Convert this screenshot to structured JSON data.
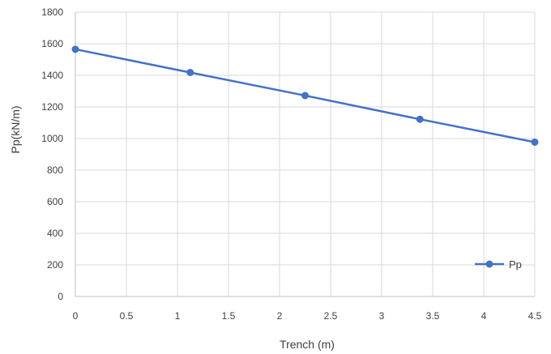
{
  "chart_data": {
    "type": "line",
    "title": "",
    "xlabel": "Trench (m)",
    "ylabel": "Pp(kN/m)",
    "xlim": [
      0,
      4.5
    ],
    "ylim": [
      0,
      1800
    ],
    "xticks": [
      0,
      0.5,
      1,
      1.5,
      2,
      2.5,
      3,
      3.5,
      4,
      4.5
    ],
    "xtick_labels": [
      "0",
      "0.5",
      "1",
      "1.5",
      "2",
      "2.5",
      "3",
      "3.5",
      "4",
      "4.5"
    ],
    "yticks": [
      0,
      200,
      400,
      600,
      800,
      1000,
      1200,
      1400,
      1600,
      1800
    ],
    "ytick_labels": [
      "0",
      "200",
      "400",
      "600",
      "800",
      "1000",
      "1200",
      "1400",
      "1600",
      "1800"
    ],
    "grid": true,
    "legend_position": "bottom-right",
    "series": [
      {
        "name": "Pp",
        "color": "#4472C4",
        "marker": "circle",
        "x": [
          0,
          1.125,
          2.25,
          3.375,
          4.5
        ],
        "y": [
          1565,
          1418,
          1272,
          1122,
          977
        ]
      }
    ]
  }
}
